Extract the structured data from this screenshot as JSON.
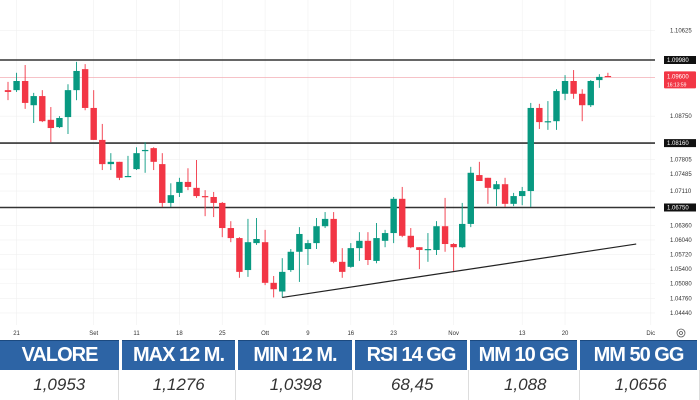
{
  "chart_data": {
    "type": "candlestick",
    "title": "",
    "colors": {
      "up": "#089981",
      "down": "#f23645",
      "levels": "#333333",
      "trendline": "#222222"
    },
    "y_ticks": [
      "1.10625",
      "1.09980",
      "1.09600",
      "1.08750",
      "1.08160",
      "1.07805",
      "1.07485",
      "1.07110",
      "1.06750",
      "1.06360",
      "1.06040",
      "1.05720",
      "1.05400",
      "1.05080",
      "1.04760",
      "1.04440"
    ],
    "ylim": [
      1.042,
      1.11
    ],
    "x_ticks": [
      {
        "label": "21",
        "index": 1
      },
      {
        "label": "Set",
        "index": 10
      },
      {
        "label": "11",
        "index": 15
      },
      {
        "label": "18",
        "index": 20
      },
      {
        "label": "25",
        "index": 25
      },
      {
        "label": "Ott",
        "index": 30
      },
      {
        "label": "9",
        "index": 35
      },
      {
        "label": "16",
        "index": 40
      },
      {
        "label": "23",
        "index": 45
      },
      {
        "label": "Nov",
        "index": 52
      },
      {
        "label": "13",
        "index": 60
      },
      {
        "label": "20",
        "index": 65
      },
      {
        "label": "Dic",
        "index": 75
      }
    ],
    "horizontal_levels": [
      {
        "price": 1.0998,
        "label": "1.09980"
      },
      {
        "price": 1.0816,
        "label": "1.08160"
      },
      {
        "price": 1.0675,
        "label": "1.06750"
      }
    ],
    "trendline": [
      {
        "index": 32,
        "price": 1.0478
      },
      {
        "index": 73.3,
        "price": 1.0595
      }
    ],
    "last_price": {
      "price": 1.096,
      "label": "1.09600",
      "countdown": "16:13:59"
    },
    "ohlc": [
      [
        1.0932,
        1.095,
        1.091,
        1.0928
      ],
      [
        1.0932,
        1.097,
        1.0928,
        1.0952
      ],
      [
        1.0952,
        1.0987,
        1.0891,
        1.0904
      ],
      [
        1.0899,
        1.0926,
        1.086,
        1.0919
      ],
      [
        1.0919,
        1.0932,
        1.0862,
        1.0864
      ],
      [
        1.0867,
        1.0895,
        1.0818,
        1.0849
      ],
      [
        1.0851,
        1.0875,
        1.0849,
        1.0871
      ],
      [
        1.0873,
        1.0945,
        1.0836,
        1.0932
      ],
      [
        1.0932,
        1.0994,
        1.091,
        1.0974
      ],
      [
        1.0978,
        1.0989,
        1.0888,
        1.0893
      ],
      [
        1.0893,
        1.0932,
        1.0823,
        1.0823
      ],
      [
        1.0823,
        1.0858,
        1.0757,
        1.077
      ],
      [
        1.077,
        1.0794,
        1.0757,
        1.0775
      ],
      [
        1.0775,
        1.0775,
        1.0735,
        1.074
      ],
      [
        1.0742,
        1.0788,
        1.0742,
        1.0744
      ],
      [
        1.0759,
        1.0807,
        1.0757,
        1.0794
      ],
      [
        1.0799,
        1.0818,
        1.0751,
        1.0801
      ],
      [
        1.0805,
        1.0807,
        1.0757,
        1.0775
      ],
      [
        1.077,
        1.0794,
        1.0676,
        1.0685
      ],
      [
        1.0685,
        1.0728,
        1.0676,
        1.0702
      ],
      [
        1.0707,
        1.074,
        1.0698,
        1.0731
      ],
      [
        1.0731,
        1.0761,
        1.0713,
        1.072
      ],
      [
        1.0718,
        1.0779,
        1.0696,
        1.07
      ],
      [
        1.07,
        1.0713,
        1.0656,
        1.0698
      ],
      [
        1.0698,
        1.0709,
        1.0654,
        1.0685
      ],
      [
        1.0685,
        1.0687,
        1.061,
        1.063
      ],
      [
        1.063,
        1.0645,
        1.0599,
        1.0608
      ],
      [
        1.0608,
        1.061,
        1.0521,
        1.0534
      ],
      [
        1.0538,
        1.065,
        1.0523,
        1.0599
      ],
      [
        1.0597,
        1.0652,
        1.0593,
        1.0606
      ],
      [
        1.0599,
        1.0626,
        1.0505,
        1.051
      ],
      [
        1.051,
        1.0525,
        1.0478,
        1.0496
      ],
      [
        1.0491,
        1.0564,
        1.0478,
        1.0534
      ],
      [
        1.0538,
        1.0584,
        1.0534,
        1.0578
      ],
      [
        1.0578,
        1.0632,
        1.0512,
        1.0617
      ],
      [
        1.0584,
        1.0604,
        1.0549,
        1.0597
      ],
      [
        1.0597,
        1.0652,
        1.0584,
        1.0634
      ],
      [
        1.0634,
        1.0665,
        1.063,
        1.065
      ],
      [
        1.065,
        1.0665,
        1.0553,
        1.0556
      ],
      [
        1.0556,
        1.0586,
        1.0521,
        1.0534
      ],
      [
        1.0545,
        1.0597,
        1.0543,
        1.0586
      ],
      [
        1.0586,
        1.0621,
        1.0558,
        1.0602
      ],
      [
        1.0602,
        1.0621,
        1.0549,
        1.056
      ],
      [
        1.0558,
        1.0641,
        1.0553,
        1.0608
      ],
      [
        1.0602,
        1.0626,
        1.0588,
        1.0619
      ],
      [
        1.0619,
        1.0698,
        1.0597,
        1.0694
      ],
      [
        1.0694,
        1.072,
        1.061,
        1.0613
      ],
      [
        1.0613,
        1.063,
        1.0586,
        1.0588
      ],
      [
        1.0588,
        1.0588,
        1.054,
        1.0582
      ],
      [
        1.0582,
        1.0619,
        1.0556,
        1.0584
      ],
      [
        1.0582,
        1.0645,
        1.0571,
        1.0634
      ],
      [
        1.0634,
        1.0696,
        1.0578,
        1.0595
      ],
      [
        1.0595,
        1.0597,
        1.0536,
        1.0588
      ],
      [
        1.0588,
        1.0685,
        1.0586,
        1.0639
      ],
      [
        1.0639,
        1.0764,
        1.0632,
        1.0751
      ],
      [
        1.0746,
        1.0775,
        1.0733,
        1.0733
      ],
      [
        1.074,
        1.074,
        1.0683,
        1.0718
      ],
      [
        1.0715,
        1.0733,
        1.0678,
        1.0726
      ],
      [
        1.0726,
        1.074,
        1.0676,
        1.0683
      ],
      [
        1.0683,
        1.0707,
        1.0678,
        1.07
      ],
      [
        1.07,
        1.072,
        1.068,
        1.0711
      ],
      [
        1.0711,
        1.0904,
        1.0676,
        1.0893
      ],
      [
        1.0893,
        1.0902,
        1.0847,
        1.0862
      ],
      [
        1.0862,
        1.0908,
        1.0845,
        1.0864
      ],
      [
        1.0864,
        1.0934,
        1.0845,
        1.093
      ],
      [
        1.0924,
        1.0965,
        1.091,
        1.0952
      ],
      [
        1.0952,
        1.0976,
        1.0913,
        1.0924
      ],
      [
        1.0924,
        1.0934,
        1.0864,
        1.0899
      ],
      [
        1.0899,
        1.0954,
        1.0895,
        1.0952
      ],
      [
        1.0954,
        1.0967,
        1.0937,
        1.0961
      ],
      [
        1.0963,
        1.097,
        1.0961,
        1.0961
      ]
    ]
  },
  "stats": {
    "headers": [
      "VALORE",
      "MAX 12 M.",
      "MIN 12 M.",
      "RSI 14 GG",
      "MM 10 GG",
      "MM 50 GG"
    ],
    "values": [
      "1,0953",
      "1,1276",
      "1,0398",
      "68,45",
      "1,088",
      "1,0656"
    ]
  },
  "icons": {
    "axis_settings": "gear-icon"
  }
}
